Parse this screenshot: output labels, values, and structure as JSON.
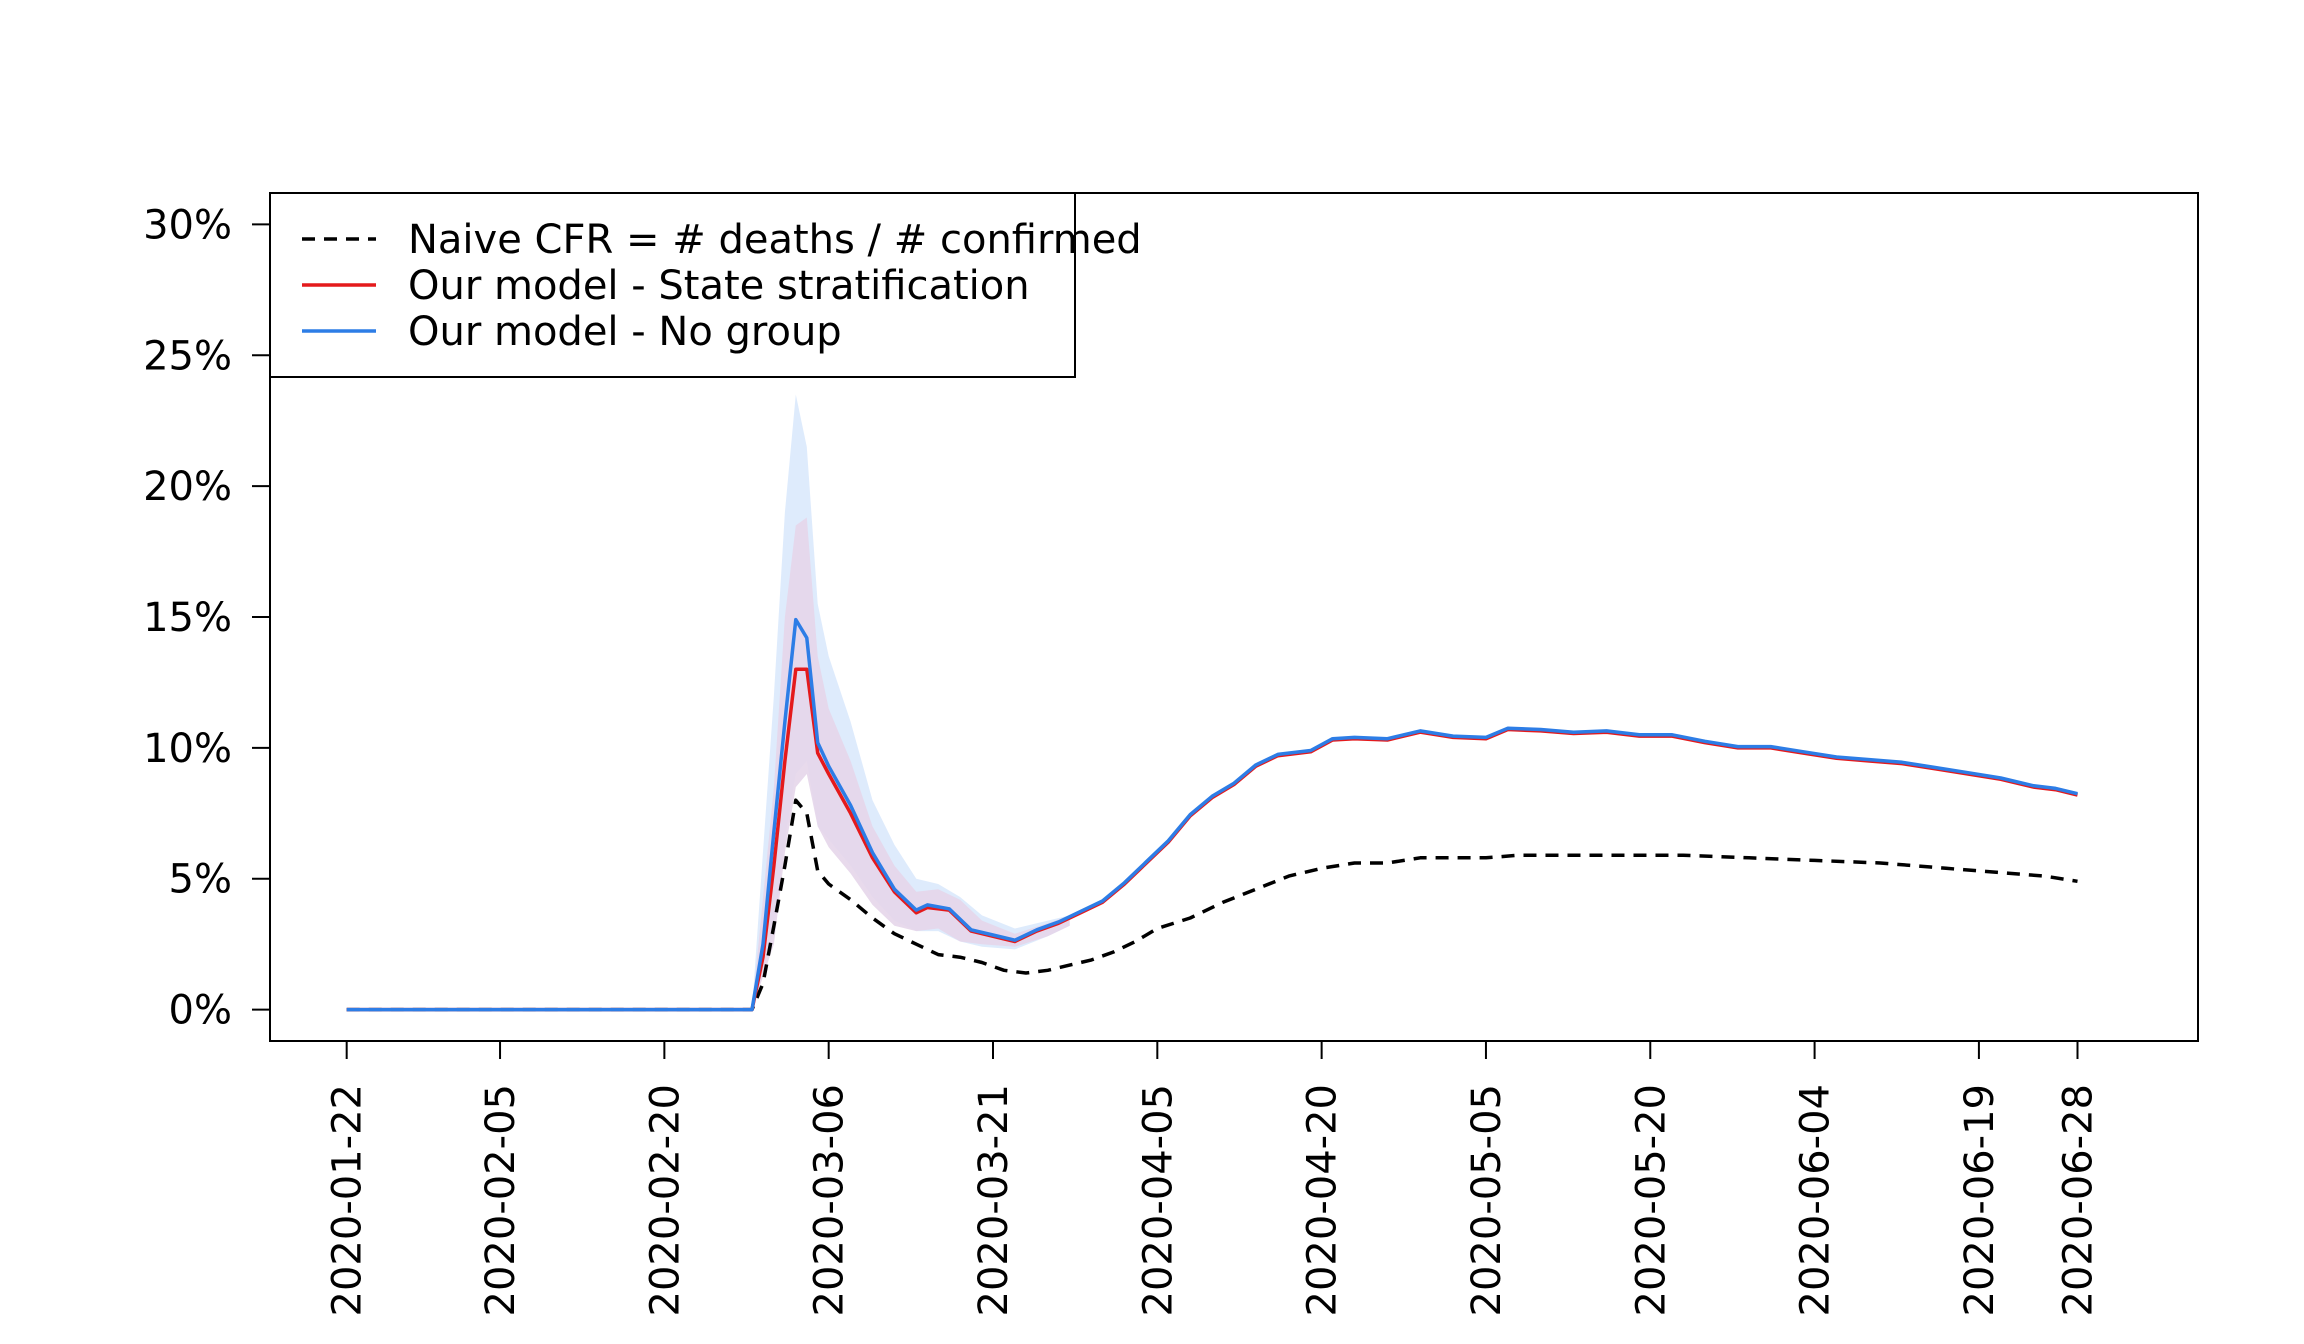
{
  "chart_data": {
    "type": "line",
    "title": "",
    "xlabel": "",
    "ylabel": "",
    "x_tick_labels": [
      "2020-01-22",
      "2020-02-05",
      "2020-02-20",
      "2020-03-06",
      "2020-03-21",
      "2020-04-05",
      "2020-04-20",
      "2020-05-05",
      "2020-05-20",
      "2020-06-04",
      "2020-06-19",
      "2020-06-28"
    ],
    "y_tick_labels": [
      "0%",
      "5%",
      "10%",
      "15%",
      "20%",
      "25%",
      "30%"
    ],
    "y_ticks": [
      0,
      5,
      10,
      15,
      20,
      25,
      30
    ],
    "ylim": [
      -1.2,
      31.2
    ],
    "xlim": [
      "2020-01-15",
      "2020-07-09"
    ],
    "grid": false,
    "legend_position": "top-left",
    "legend": [
      {
        "label": "Naive CFR = # deaths / # confirmed",
        "color": "#000000",
        "dash": "dashed"
      },
      {
        "label": "Our model - State stratification",
        "color": "#e41a1c",
        "dash": "solid"
      },
      {
        "label": "Our model - No group",
        "color": "#2d7de6",
        "dash": "solid"
      }
    ],
    "series": [
      {
        "name": "Naive CFR = # deaths / # confirmed",
        "color": "#000000",
        "points": [
          [
            "2020-01-22",
            0
          ],
          [
            "2020-02-05",
            0
          ],
          [
            "2020-02-20",
            0
          ],
          [
            "2020-02-28",
            0
          ],
          [
            "2020-02-29",
            1.0
          ],
          [
            "2020-03-01",
            3.2
          ],
          [
            "2020-03-02",
            5.5
          ],
          [
            "2020-03-03",
            8.0
          ],
          [
            "2020-03-04",
            7.5
          ],
          [
            "2020-03-05",
            5.3
          ],
          [
            "2020-03-06",
            4.8
          ],
          [
            "2020-03-08",
            4.2
          ],
          [
            "2020-03-10",
            3.5
          ],
          [
            "2020-03-12",
            2.9
          ],
          [
            "2020-03-14",
            2.5
          ],
          [
            "2020-03-16",
            2.1
          ],
          [
            "2020-03-18",
            2.0
          ],
          [
            "2020-03-20",
            1.8
          ],
          [
            "2020-03-22",
            1.5
          ],
          [
            "2020-03-24",
            1.4
          ],
          [
            "2020-03-26",
            1.5
          ],
          [
            "2020-03-28",
            1.7
          ],
          [
            "2020-03-30",
            1.9
          ],
          [
            "2020-04-01",
            2.2
          ],
          [
            "2020-04-03",
            2.6
          ],
          [
            "2020-04-05",
            3.1
          ],
          [
            "2020-04-08",
            3.5
          ],
          [
            "2020-04-11",
            4.1
          ],
          [
            "2020-04-14",
            4.6
          ],
          [
            "2020-04-17",
            5.1
          ],
          [
            "2020-04-20",
            5.4
          ],
          [
            "2020-04-23",
            5.6
          ],
          [
            "2020-04-26",
            5.6
          ],
          [
            "2020-04-29",
            5.8
          ],
          [
            "2020-05-02",
            5.8
          ],
          [
            "2020-05-05",
            5.8
          ],
          [
            "2020-05-08",
            5.9
          ],
          [
            "2020-05-11",
            5.9
          ],
          [
            "2020-05-14",
            5.9
          ],
          [
            "2020-05-17",
            5.9
          ],
          [
            "2020-05-20",
            5.9
          ],
          [
            "2020-05-23",
            5.9
          ],
          [
            "2020-05-26",
            5.85
          ],
          [
            "2020-05-29",
            5.8
          ],
          [
            "2020-06-01",
            5.75
          ],
          [
            "2020-06-04",
            5.7
          ],
          [
            "2020-06-07",
            5.65
          ],
          [
            "2020-06-10",
            5.6
          ],
          [
            "2020-06-13",
            5.5
          ],
          [
            "2020-06-16",
            5.4
          ],
          [
            "2020-06-19",
            5.3
          ],
          [
            "2020-06-22",
            5.2
          ],
          [
            "2020-06-25",
            5.1
          ],
          [
            "2020-06-28",
            4.9
          ]
        ]
      },
      {
        "name": "Our model - State stratification",
        "color": "#e41a1c",
        "points": [
          [
            "2020-01-22",
            0
          ],
          [
            "2020-02-05",
            0
          ],
          [
            "2020-02-20",
            0
          ],
          [
            "2020-02-28",
            0
          ],
          [
            "2020-02-29",
            2.0
          ],
          [
            "2020-03-01",
            5.5
          ],
          [
            "2020-03-02",
            9.5
          ],
          [
            "2020-03-03",
            13.0
          ],
          [
            "2020-03-04",
            13.0
          ],
          [
            "2020-03-05",
            9.8
          ],
          [
            "2020-03-06",
            9.0
          ],
          [
            "2020-03-08",
            7.5
          ],
          [
            "2020-03-10",
            5.8
          ],
          [
            "2020-03-12",
            4.5
          ],
          [
            "2020-03-14",
            3.7
          ],
          [
            "2020-03-15",
            3.9
          ],
          [
            "2020-03-17",
            3.8
          ],
          [
            "2020-03-19",
            3.0
          ],
          [
            "2020-03-21",
            2.8
          ],
          [
            "2020-03-23",
            2.6
          ],
          [
            "2020-03-25",
            3.0
          ],
          [
            "2020-03-27",
            3.3
          ],
          [
            "2020-03-29",
            3.7
          ],
          [
            "2020-03-31",
            4.1
          ],
          [
            "2020-04-02",
            4.8
          ],
          [
            "2020-04-04",
            5.6
          ],
          [
            "2020-04-06",
            6.4
          ],
          [
            "2020-04-08",
            7.4
          ],
          [
            "2020-04-10",
            8.1
          ],
          [
            "2020-04-12",
            8.6
          ],
          [
            "2020-04-14",
            9.3
          ],
          [
            "2020-04-16",
            9.7
          ],
          [
            "2020-04-19",
            9.85
          ],
          [
            "2020-04-21",
            10.3
          ],
          [
            "2020-04-23",
            10.35
          ],
          [
            "2020-04-26",
            10.3
          ],
          [
            "2020-04-29",
            10.6
          ],
          [
            "2020-05-02",
            10.4
          ],
          [
            "2020-05-05",
            10.35
          ],
          [
            "2020-05-07",
            10.7
          ],
          [
            "2020-05-10",
            10.65
          ],
          [
            "2020-05-13",
            10.55
          ],
          [
            "2020-05-16",
            10.6
          ],
          [
            "2020-05-19",
            10.45
          ],
          [
            "2020-05-22",
            10.45
          ],
          [
            "2020-05-25",
            10.2
          ],
          [
            "2020-05-28",
            10.0
          ],
          [
            "2020-05-31",
            10.0
          ],
          [
            "2020-06-03",
            9.8
          ],
          [
            "2020-06-06",
            9.6
          ],
          [
            "2020-06-09",
            9.5
          ],
          [
            "2020-06-12",
            9.4
          ],
          [
            "2020-06-15",
            9.2
          ],
          [
            "2020-06-18",
            9.0
          ],
          [
            "2020-06-21",
            8.8
          ],
          [
            "2020-06-24",
            8.5
          ],
          [
            "2020-06-26",
            8.4
          ],
          [
            "2020-06-28",
            8.2
          ]
        ]
      },
      {
        "name": "Our model - No group",
        "color": "#2d7de6",
        "points": [
          [
            "2020-01-22",
            0
          ],
          [
            "2020-02-05",
            0
          ],
          [
            "2020-02-20",
            0
          ],
          [
            "2020-02-28",
            0
          ],
          [
            "2020-02-29",
            2.5
          ],
          [
            "2020-03-01",
            6.8
          ],
          [
            "2020-03-02",
            11.0
          ],
          [
            "2020-03-03",
            14.9
          ],
          [
            "2020-03-04",
            14.2
          ],
          [
            "2020-03-05",
            10.2
          ],
          [
            "2020-03-06",
            9.3
          ],
          [
            "2020-03-08",
            7.8
          ],
          [
            "2020-03-10",
            6.0
          ],
          [
            "2020-03-12",
            4.6
          ],
          [
            "2020-03-14",
            3.8
          ],
          [
            "2020-03-15",
            4.0
          ],
          [
            "2020-03-17",
            3.85
          ],
          [
            "2020-03-19",
            3.05
          ],
          [
            "2020-03-21",
            2.85
          ],
          [
            "2020-03-23",
            2.65
          ],
          [
            "2020-03-25",
            3.05
          ],
          [
            "2020-03-27",
            3.35
          ],
          [
            "2020-03-29",
            3.75
          ],
          [
            "2020-03-31",
            4.15
          ],
          [
            "2020-04-02",
            4.85
          ],
          [
            "2020-04-04",
            5.65
          ],
          [
            "2020-04-06",
            6.45
          ],
          [
            "2020-04-08",
            7.45
          ],
          [
            "2020-04-10",
            8.15
          ],
          [
            "2020-04-12",
            8.65
          ],
          [
            "2020-04-14",
            9.35
          ],
          [
            "2020-04-16",
            9.75
          ],
          [
            "2020-04-19",
            9.9
          ],
          [
            "2020-04-21",
            10.35
          ],
          [
            "2020-04-23",
            10.4
          ],
          [
            "2020-04-26",
            10.35
          ],
          [
            "2020-04-29",
            10.65
          ],
          [
            "2020-05-02",
            10.45
          ],
          [
            "2020-05-05",
            10.4
          ],
          [
            "2020-05-07",
            10.75
          ],
          [
            "2020-05-10",
            10.7
          ],
          [
            "2020-05-13",
            10.6
          ],
          [
            "2020-05-16",
            10.65
          ],
          [
            "2020-05-19",
            10.5
          ],
          [
            "2020-05-22",
            10.5
          ],
          [
            "2020-05-25",
            10.25
          ],
          [
            "2020-05-28",
            10.05
          ],
          [
            "2020-05-31",
            10.05
          ],
          [
            "2020-06-03",
            9.85
          ],
          [
            "2020-06-06",
            9.65
          ],
          [
            "2020-06-09",
            9.55
          ],
          [
            "2020-06-12",
            9.45
          ],
          [
            "2020-06-15",
            9.25
          ],
          [
            "2020-06-18",
            9.05
          ],
          [
            "2020-06-21",
            8.85
          ],
          [
            "2020-06-24",
            8.55
          ],
          [
            "2020-06-26",
            8.45
          ],
          [
            "2020-06-28",
            8.25
          ]
        ]
      }
    ],
    "bands": [
      {
        "series": "Our model - No group",
        "color": "#d8e8fb",
        "points": [
          [
            "2020-02-28",
            0,
            0
          ],
          [
            "2020-03-01",
            3.0,
            12.0
          ],
          [
            "2020-03-02",
            6.5,
            19.0
          ],
          [
            "2020-03-03",
            9.0,
            23.5
          ],
          [
            "2020-03-04",
            9.5,
            21.5
          ],
          [
            "2020-03-05",
            7.0,
            15.5
          ],
          [
            "2020-03-06",
            6.5,
            13.5
          ],
          [
            "2020-03-08",
            5.5,
            11.0
          ],
          [
            "2020-03-10",
            4.3,
            8.0
          ],
          [
            "2020-03-12",
            3.4,
            6.3
          ],
          [
            "2020-03-14",
            3.0,
            5.0
          ],
          [
            "2020-03-16",
            3.0,
            4.8
          ],
          [
            "2020-03-18",
            2.6,
            4.3
          ],
          [
            "2020-03-20",
            2.4,
            3.6
          ],
          [
            "2020-03-23",
            2.3,
            3.1
          ],
          [
            "2020-03-26",
            2.8,
            3.4
          ],
          [
            "2020-03-28",
            3.2,
            3.6
          ]
        ]
      },
      {
        "series": "Our model - State stratification",
        "color": "#e6d6ea",
        "points": [
          [
            "2020-02-28",
            0,
            0
          ],
          [
            "2020-03-01",
            2.5,
            8.5
          ],
          [
            "2020-03-02",
            6.0,
            15.0
          ],
          [
            "2020-03-03",
            8.5,
            18.5
          ],
          [
            "2020-03-04",
            9.0,
            18.8
          ],
          [
            "2020-03-05",
            7.0,
            13.5
          ],
          [
            "2020-03-06",
            6.2,
            11.5
          ],
          [
            "2020-03-08",
            5.2,
            9.5
          ],
          [
            "2020-03-10",
            4.0,
            7.0
          ],
          [
            "2020-03-12",
            3.2,
            5.5
          ],
          [
            "2020-03-14",
            3.0,
            4.5
          ],
          [
            "2020-03-16",
            3.1,
            4.6
          ],
          [
            "2020-03-18",
            2.6,
            4.2
          ],
          [
            "2020-03-20",
            2.5,
            3.4
          ],
          [
            "2020-03-23",
            2.4,
            2.9
          ],
          [
            "2020-03-26",
            2.8,
            3.3
          ],
          [
            "2020-03-28",
            3.2,
            3.6
          ]
        ]
      }
    ]
  }
}
